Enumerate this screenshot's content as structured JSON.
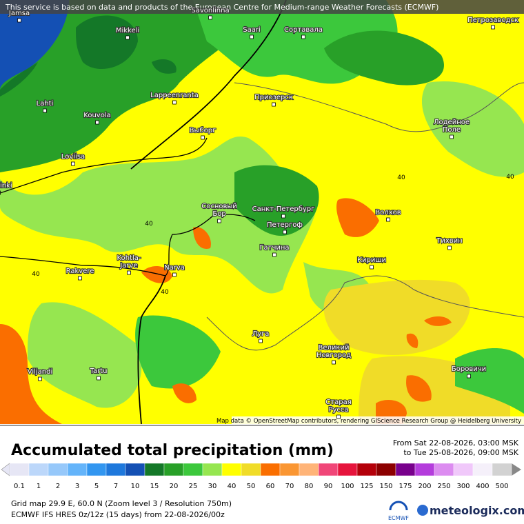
{
  "banner": "This service is based on data and products of the European Centre for Medium-range Weather Forecasts (ECMWF)",
  "attribution": "Map data © OpenStreetMap contributors, rendering GIScience Research Group @ Heidelberg University",
  "places": [
    {
      "lines": [
        "Jamsa"
      ]
    },
    {
      "lines": [
        "Savonlinna"
      ]
    },
    {
      "lines": [
        "Mikkeli"
      ]
    },
    {
      "lines": [
        "Saari"
      ]
    },
    {
      "lines": [
        "Сортавала"
      ]
    },
    {
      "lines": [
        "Петрозаводск"
      ]
    },
    {
      "lines": [
        "Lahti"
      ]
    },
    {
      "lines": [
        "Lappeenranta"
      ]
    },
    {
      "lines": [
        "Приозерск"
      ]
    },
    {
      "lines": [
        "Kouvola"
      ]
    },
    {
      "lines": [
        "Лодейное",
        "Поле"
      ]
    },
    {
      "lines": [
        "Выборг"
      ]
    },
    {
      "lines": [
        "Loviisa"
      ]
    },
    {
      "lines": [
        "Helsinki"
      ]
    },
    {
      "lines": [
        "Сосновый",
        "Бор"
      ]
    },
    {
      "lines": [
        "Санкт-Петербург"
      ]
    },
    {
      "lines": [
        "Волхов"
      ]
    },
    {
      "lines": [
        "Петергоф"
      ]
    },
    {
      "lines": [
        "Тихвин"
      ]
    },
    {
      "lines": [
        "Гатчина"
      ]
    },
    {
      "lines": [
        "Kohtla-",
        "Jarve"
      ]
    },
    {
      "lines": [
        "Кириши"
      ]
    },
    {
      "lines": [
        "Rakvere"
      ]
    },
    {
      "lines": [
        "Narva"
      ]
    },
    {
      "lines": [
        "Луга"
      ]
    },
    {
      "lines": [
        "Великий",
        "Новгород"
      ]
    },
    {
      "lines": [
        "Viljandi"
      ]
    },
    {
      "lines": [
        "Tartu"
      ]
    },
    {
      "lines": [
        "Боровичи"
      ]
    },
    {
      "lines": [
        "Старая",
        "Русса"
      ]
    }
  ],
  "contour_labels": [
    40,
    40,
    40,
    40,
    40
  ],
  "legend": {
    "title": "Accumulated total precipitation (mm)",
    "from": "From Sat 22-08-2026, 03:00 MSK",
    "to": "to Tue 25-08-2026, 09:00 MSK",
    "bins": [
      {
        "value": 0.1,
        "color": "#e6e6f5"
      },
      {
        "value": 1,
        "color": "#bcd7fa"
      },
      {
        "value": 2,
        "color": "#96c8fa"
      },
      {
        "value": 3,
        "color": "#64b4fa"
      },
      {
        "value": 5,
        "color": "#3296f0"
      },
      {
        "value": 7,
        "color": "#1e78dc"
      },
      {
        "value": 10,
        "color": "#1450b4"
      },
      {
        "value": 15,
        "color": "#147828"
      },
      {
        "value": 20,
        "color": "#28a028"
      },
      {
        "value": 25,
        "color": "#3cc83c"
      },
      {
        "value": 30,
        "color": "#96e650"
      },
      {
        "value": 40,
        "color": "#ffff00"
      },
      {
        "value": 50,
        "color": "#f0dc28"
      },
      {
        "value": 60,
        "color": "#fa6e00"
      },
      {
        "value": 70,
        "color": "#fa9632"
      },
      {
        "value": 80,
        "color": "#ffb478"
      },
      {
        "value": 90,
        "color": "#f04678"
      },
      {
        "value": 100,
        "color": "#e6143c"
      },
      {
        "value": 125,
        "color": "#b4000a"
      },
      {
        "value": 150,
        "color": "#8c0000"
      },
      {
        "value": 175,
        "color": "#78008c"
      },
      {
        "value": 200,
        "color": "#b43cdc"
      },
      {
        "value": 250,
        "color": "#dc8cf0"
      },
      {
        "value": 300,
        "color": "#f0c8fa"
      },
      {
        "value": 400,
        "color": "#f5f0fa"
      },
      {
        "value": 500,
        "color": "#d2d2d2"
      }
    ]
  },
  "footer": {
    "grid": "Grid map 29.9 E, 60.0 N (Zoom level 3 / Resolution 750m)",
    "model": "ECMWF IFS HRES 0z/12z (15 days) from  22-08-2026/00z",
    "ecmwf": "ECMWF",
    "brand": "meteologix.com"
  }
}
